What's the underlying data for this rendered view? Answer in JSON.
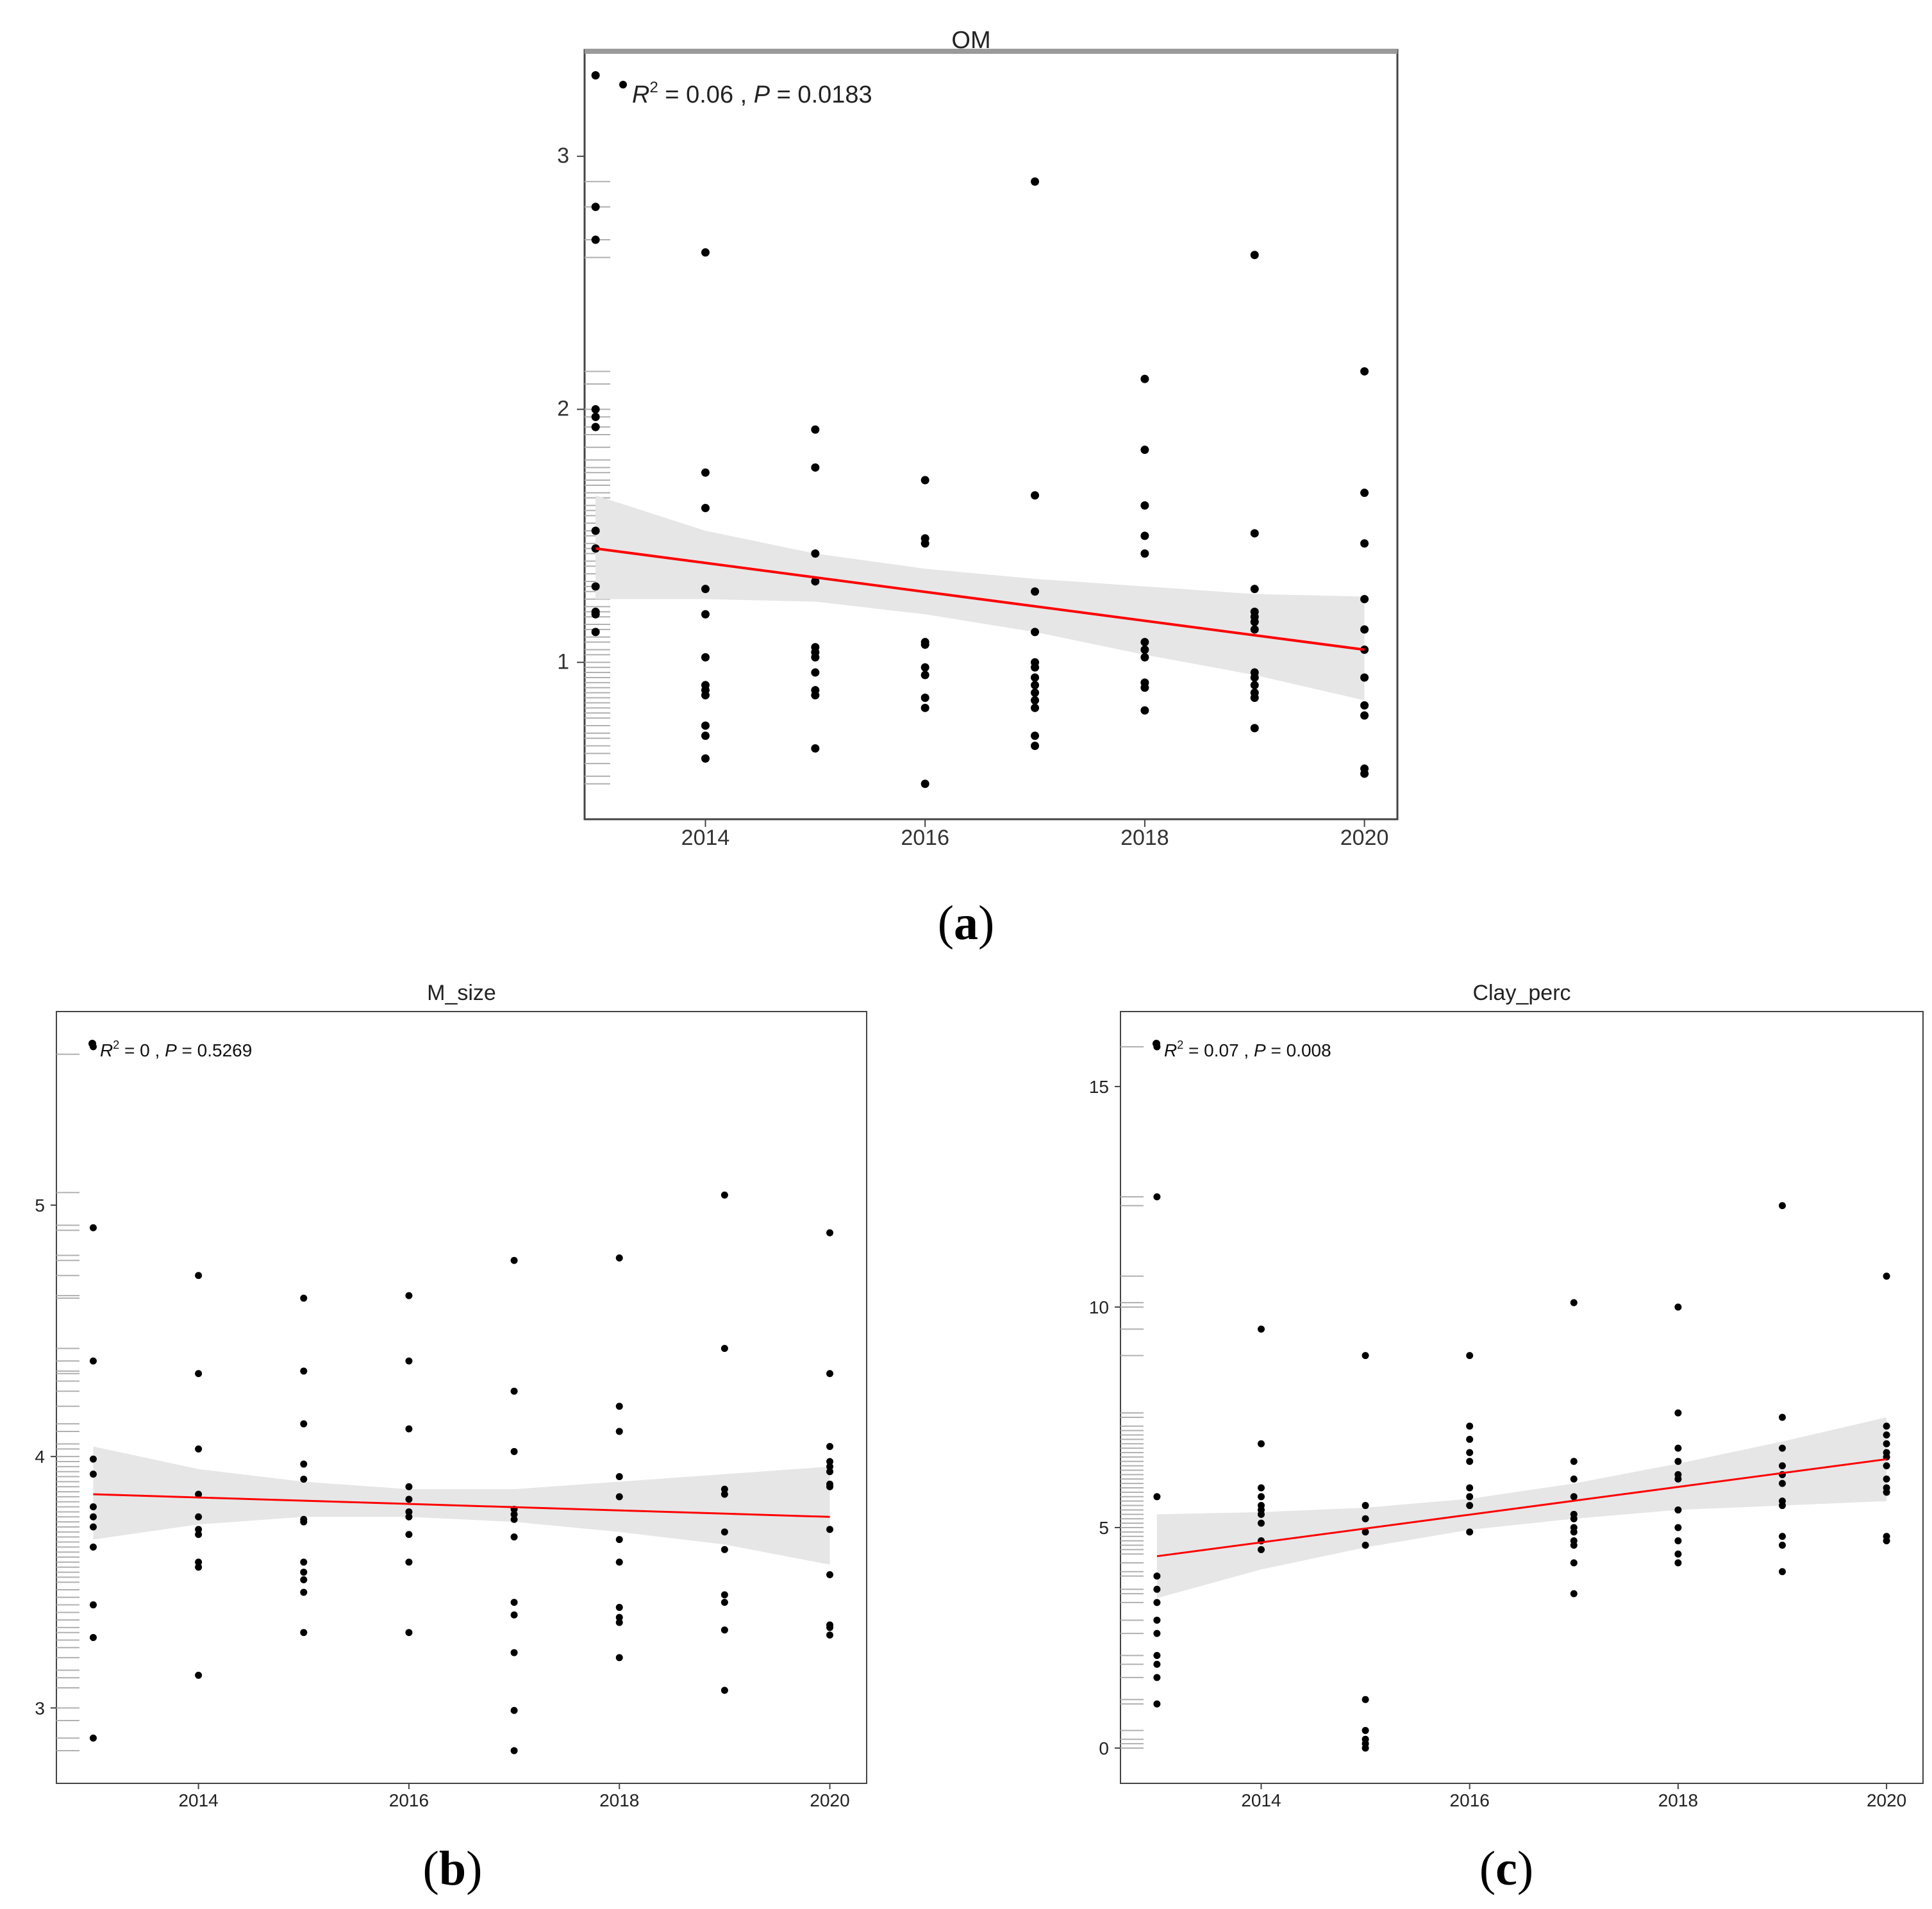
{
  "figure": {
    "panels": [
      {
        "id": "a",
        "label_open": "(",
        "label_letter": "a",
        "label_close": ")"
      },
      {
        "id": "b",
        "label_open": "(",
        "label_letter": "b",
        "label_close": ")"
      },
      {
        "id": "c",
        "label_open": "(",
        "label_letter": "c",
        "label_close": ")"
      }
    ]
  },
  "chart_data": [
    {
      "id": "a",
      "type": "scatter",
      "title": "OM",
      "xlabel": "",
      "ylabel": "",
      "xlim": [
        2012.9,
        2020.3
      ],
      "ylim": [
        0.38,
        3.42
      ],
      "xticks": [
        2014,
        2016,
        2018,
        2020
      ],
      "yticks": [
        1,
        2,
        3
      ],
      "stats": {
        "r2_prefix": "R",
        "r2_sup": "2",
        "r2_rest": " = 0.06 , ",
        "p_prefix": "P",
        "p_rest": " = 0.0183"
      },
      "colors": {
        "points": "#000000",
        "fit_line": "#ff0000",
        "band": "#e6e6e6",
        "rug": "#b0b0b0"
      },
      "fit": {
        "x": [
          2013,
          2020
        ],
        "y": [
          1.45,
          1.05
        ]
      },
      "band": {
        "x": [
          2013,
          2014,
          2015,
          2016,
          2017,
          2018,
          2019,
          2020
        ],
        "upper": [
          1.66,
          1.52,
          1.43,
          1.37,
          1.33,
          1.3,
          1.27,
          1.26
        ],
        "lower": [
          1.25,
          1.25,
          1.24,
          1.19,
          1.12,
          1.03,
          0.95,
          0.85
        ]
      },
      "points": [
        {
          "x": 2013,
          "y": [
            3.32,
            2.8,
            2.67,
            2.0,
            1.97,
            1.93,
            1.52,
            1.45,
            1.3,
            1.2,
            1.19,
            1.12
          ]
        },
        {
          "x": 2014,
          "y": [
            2.62,
            1.75,
            1.61,
            1.29,
            1.19,
            1.02,
            0.91,
            0.89,
            0.87,
            0.75,
            0.71,
            0.62
          ]
        },
        {
          "x": 2015,
          "y": [
            1.92,
            1.77,
            1.43,
            1.32,
            1.06,
            1.04,
            1.02,
            0.96,
            0.89,
            0.87,
            0.66
          ]
        },
        {
          "x": 2016,
          "y": [
            1.72,
            1.49,
            1.47,
            1.08,
            1.07,
            0.98,
            0.95,
            0.86,
            0.82,
            0.52
          ]
        },
        {
          "x": 2017,
          "y": [
            2.9,
            1.66,
            1.28,
            1.12,
            1.0,
            0.98,
            0.94,
            0.91,
            0.88,
            0.85,
            0.82,
            0.71,
            0.67
          ]
        },
        {
          "x": 2018,
          "y": [
            2.12,
            1.84,
            1.62,
            1.5,
            1.43,
            1.08,
            1.05,
            1.02,
            0.92,
            0.9,
            0.81
          ]
        },
        {
          "x": 2019,
          "y": [
            2.61,
            1.51,
            1.29,
            1.2,
            1.18,
            1.16,
            1.13,
            0.96,
            0.94,
            0.91,
            0.88,
            0.86,
            0.74
          ]
        },
        {
          "x": 2020,
          "y": [
            2.15,
            1.67,
            1.47,
            1.25,
            1.13,
            1.05,
            0.94,
            0.83,
            0.79,
            0.58,
            0.56
          ]
        }
      ],
      "rug": [
        2.9,
        2.8,
        2.67,
        2.6,
        2.15,
        2.1,
        2.0,
        1.97,
        1.93,
        1.9,
        1.85,
        1.8,
        1.77,
        1.75,
        1.72,
        1.7,
        1.67,
        1.65,
        1.62,
        1.6,
        1.58,
        1.55,
        1.52,
        1.5,
        1.47,
        1.45,
        1.43,
        1.4,
        1.38,
        1.35,
        1.32,
        1.3,
        1.28,
        1.25,
        1.22,
        1.2,
        1.18,
        1.15,
        1.13,
        1.1,
        1.08,
        1.05,
        1.03,
        1.0,
        0.98,
        0.96,
        0.94,
        0.92,
        0.9,
        0.88,
        0.86,
        0.84,
        0.82,
        0.8,
        0.78,
        0.75,
        0.72,
        0.7,
        0.67,
        0.64,
        0.6,
        0.55,
        0.52
      ]
    },
    {
      "id": "b",
      "type": "scatter",
      "title": "M_size",
      "xlabel": "",
      "ylabel": "",
      "xlim": [
        2012.65,
        2020.35
      ],
      "ylim": [
        2.7,
        5.77
      ],
      "xticks": [
        2014,
        2016,
        2018,
        2020
      ],
      "yticks": [
        3,
        4,
        5
      ],
      "stats": {
        "r2_prefix": "R",
        "r2_sup": "2",
        "r2_rest": " = 0 , ",
        "p_prefix": "P",
        "p_rest": " = 0.5269"
      },
      "colors": {
        "points": "#000000",
        "fit_line": "#ff0000",
        "band": "#e6e6e6",
        "rug": "#b0b0b0"
      },
      "fit": {
        "x": [
          2013,
          2020
        ],
        "y": [
          3.85,
          3.76
        ]
      },
      "band": {
        "x": [
          2013,
          2014,
          2015,
          2016,
          2017,
          2018,
          2019,
          2020
        ],
        "upper": [
          4.04,
          3.95,
          3.9,
          3.87,
          3.87,
          3.9,
          3.93,
          3.96
        ],
        "lower": [
          3.67,
          3.73,
          3.76,
          3.76,
          3.74,
          3.7,
          3.65,
          3.57
        ]
      },
      "points": [
        {
          "x": 2013,
          "y": [
            5.63,
            4.91,
            4.38,
            3.99,
            3.93,
            3.8,
            3.76,
            3.72,
            3.64,
            3.41,
            3.28,
            2.88
          ]
        },
        {
          "x": 2014,
          "y": [
            4.72,
            4.33,
            4.03,
            3.85,
            3.76,
            3.71,
            3.69,
            3.58,
            3.56,
            3.13
          ]
        },
        {
          "x": 2015,
          "y": [
            4.63,
            4.34,
            4.13,
            3.97,
            3.91,
            3.75,
            3.74,
            3.58,
            3.54,
            3.51,
            3.46,
            3.3
          ]
        },
        {
          "x": 2016,
          "y": [
            4.64,
            4.38,
            4.11,
            3.88,
            3.83,
            3.78,
            3.76,
            3.69,
            3.58,
            3.3
          ]
        },
        {
          "x": 2017,
          "y": [
            4.78,
            4.26,
            4.02,
            3.79,
            3.77,
            3.75,
            3.68,
            3.42,
            3.37,
            3.22,
            2.99,
            2.83
          ]
        },
        {
          "x": 2018,
          "y": [
            4.79,
            4.2,
            4.1,
            3.92,
            3.84,
            3.67,
            3.58,
            3.4,
            3.36,
            3.34,
            3.2
          ]
        },
        {
          "x": 2019,
          "y": [
            5.04,
            4.43,
            3.87,
            3.85,
            3.7,
            3.63,
            3.45,
            3.42,
            3.31,
            3.07
          ]
        },
        {
          "x": 2020,
          "y": [
            4.89,
            4.33,
            4.04,
            3.98,
            3.96,
            3.94,
            3.89,
            3.88,
            3.71,
            3.53,
            3.33,
            3.32,
            3.29
          ]
        }
      ],
      "rug": [
        5.6,
        5.05,
        4.92,
        4.9,
        4.8,
        4.78,
        4.72,
        4.64,
        4.63,
        4.43,
        4.38,
        4.34,
        4.33,
        4.3,
        4.26,
        4.2,
        4.13,
        4.1,
        4.05,
        4.03,
        4.0,
        3.98,
        3.96,
        3.94,
        3.92,
        3.9,
        3.88,
        3.86,
        3.84,
        3.82,
        3.8,
        3.78,
        3.76,
        3.74,
        3.72,
        3.7,
        3.68,
        3.66,
        3.64,
        3.62,
        3.6,
        3.58,
        3.56,
        3.54,
        3.52,
        3.5,
        3.47,
        3.44,
        3.41,
        3.38,
        3.35,
        3.32,
        3.3,
        3.27,
        3.24,
        3.2,
        3.15,
        3.12,
        3.08,
        3.0,
        2.95,
        2.88,
        2.83
      ]
    },
    {
      "id": "c",
      "type": "scatter",
      "title": "Clay_perc",
      "xlabel": "",
      "ylabel": "",
      "xlim": [
        2012.65,
        2020.35
      ],
      "ylim": [
        -0.8,
        16.7
      ],
      "xticks": [
        2014,
        2016,
        2018,
        2020
      ],
      "yticks": [
        0,
        5,
        10,
        15
      ],
      "stats": {
        "r2_prefix": "R",
        "r2_sup": "2",
        "r2_rest": " = 0.07 , ",
        "p_prefix": "P",
        "p_rest": " = 0.008"
      },
      "colors": {
        "points": "#000000",
        "fit_line": "#ff0000",
        "band": "#e6e6e6",
        "rug": "#b0b0b0"
      },
      "fit": {
        "x": [
          2013,
          2020
        ],
        "y": [
          4.35,
          6.55
        ]
      },
      "band": {
        "x": [
          2013,
          2014,
          2015,
          2016,
          2017,
          2018,
          2019,
          2020
        ],
        "upper": [
          5.3,
          5.35,
          5.45,
          5.65,
          6.0,
          6.45,
          6.95,
          7.5
        ],
        "lower": [
          3.4,
          4.05,
          4.55,
          4.95,
          5.2,
          5.4,
          5.5,
          5.6
        ]
      },
      "points": [
        {
          "x": 2013,
          "y": [
            15.9,
            12.5,
            5.7,
            3.9,
            3.6,
            3.3,
            2.9,
            2.6,
            2.1,
            1.9,
            1.6,
            1.0
          ]
        },
        {
          "x": 2014,
          "y": [
            9.5,
            6.9,
            5.9,
            5.7,
            5.5,
            5.4,
            5.3,
            5.1,
            4.7,
            4.5
          ]
        },
        {
          "x": 2015,
          "y": [
            8.9,
            5.5,
            5.2,
            4.9,
            4.6,
            1.1,
            0.4,
            0.2,
            0.1,
            0.0
          ]
        },
        {
          "x": 2016,
          "y": [
            8.9,
            7.3,
            7.0,
            6.7,
            6.5,
            5.9,
            5.7,
            5.5,
            4.9
          ]
        },
        {
          "x": 2017,
          "y": [
            10.1,
            6.5,
            6.1,
            5.7,
            5.3,
            5.2,
            5.0,
            4.9,
            4.7,
            4.6,
            4.2,
            3.5
          ]
        },
        {
          "x": 2018,
          "y": [
            10.0,
            7.6,
            6.8,
            6.5,
            6.2,
            6.1,
            5.4,
            5.0,
            4.7,
            4.4,
            4.2
          ]
        },
        {
          "x": 2019,
          "y": [
            12.3,
            7.5,
            6.8,
            6.4,
            6.2,
            6.0,
            5.6,
            5.5,
            4.8,
            4.6,
            4.0
          ]
        },
        {
          "x": 2020,
          "y": [
            10.7,
            7.3,
            7.1,
            6.9,
            6.7,
            6.6,
            6.4,
            6.1,
            5.9,
            5.8,
            4.8,
            4.7
          ]
        }
      ],
      "rug": [
        15.9,
        12.5,
        12.3,
        10.7,
        10.1,
        10.0,
        9.5,
        8.9,
        7.6,
        7.5,
        7.3,
        7.2,
        7.1,
        7.0,
        6.9,
        6.8,
        6.7,
        6.6,
        6.5,
        6.4,
        6.3,
        6.2,
        6.1,
        6.0,
        5.9,
        5.8,
        5.7,
        5.6,
        5.5,
        5.4,
        5.3,
        5.2,
        5.1,
        5.0,
        4.9,
        4.8,
        4.7,
        4.6,
        4.5,
        4.4,
        4.2,
        4.0,
        3.9,
        3.6,
        3.5,
        3.3,
        2.9,
        2.6,
        2.1,
        1.9,
        1.6,
        1.1,
        1.0,
        0.4,
        0.2,
        0.1,
        0.0
      ]
    }
  ]
}
